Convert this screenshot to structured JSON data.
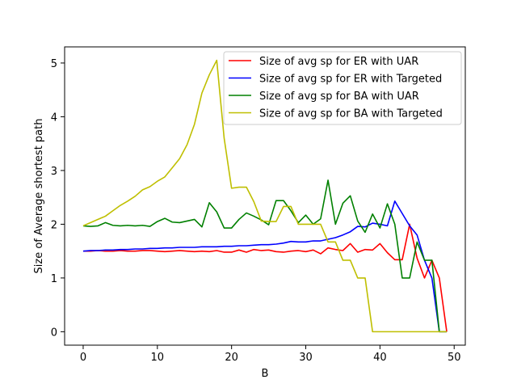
{
  "chart_data": {
    "type": "line",
    "title": "",
    "xlabel": "B",
    "ylabel": "Size of Average shortest path",
    "xlim": [
      -2.5,
      51.5
    ],
    "ylim": [
      -0.25,
      5.3
    ],
    "xticks": [
      0,
      10,
      20,
      30,
      40,
      50
    ],
    "yticks": [
      0,
      1,
      2,
      3,
      4,
      5
    ],
    "grid": false,
    "legend_position": "upper right",
    "x": [
      0,
      1,
      2,
      3,
      4,
      5,
      6,
      7,
      8,
      9,
      10,
      11,
      12,
      13,
      14,
      15,
      16,
      17,
      18,
      19,
      20,
      21,
      22,
      23,
      24,
      25,
      26,
      27,
      28,
      29,
      30,
      31,
      32,
      33,
      34,
      35,
      36,
      37,
      38,
      39,
      40,
      41,
      42,
      43,
      44,
      45,
      46,
      47,
      48,
      49
    ],
    "series": [
      {
        "name": "Size of avg sp for ER with UAR",
        "color": "#ff0000",
        "values": [
          1.5,
          1.5,
          1.51,
          1.5,
          1.5,
          1.51,
          1.5,
          1.5,
          1.51,
          1.51,
          1.5,
          1.49,
          1.5,
          1.51,
          1.5,
          1.49,
          1.5,
          1.49,
          1.51,
          1.48,
          1.48,
          1.52,
          1.48,
          1.53,
          1.51,
          1.52,
          1.49,
          1.48,
          1.5,
          1.51,
          1.49,
          1.52,
          1.45,
          1.56,
          1.53,
          1.51,
          1.64,
          1.48,
          1.53,
          1.52,
          1.64,
          1.47,
          1.34,
          1.34,
          2.0,
          1.37,
          1.0,
          1.33,
          1.0,
          0.0
        ]
      },
      {
        "name": "Size of avg sp for ER with Targeted",
        "color": "#0000ff",
        "values": [
          1.5,
          1.51,
          1.51,
          1.52,
          1.52,
          1.53,
          1.53,
          1.54,
          1.54,
          1.55,
          1.55,
          1.56,
          1.56,
          1.57,
          1.57,
          1.57,
          1.58,
          1.58,
          1.58,
          1.59,
          1.59,
          1.6,
          1.6,
          1.61,
          1.62,
          1.62,
          1.63,
          1.65,
          1.68,
          1.67,
          1.67,
          1.69,
          1.69,
          1.72,
          1.75,
          1.8,
          1.86,
          1.96,
          1.95,
          2.02,
          2.0,
          1.97,
          2.43,
          2.2,
          1.97,
          1.8,
          1.33,
          1.0,
          0.0,
          0.0
        ]
      },
      {
        "name": "Size of avg sp for BA with UAR",
        "color": "#008000",
        "values": [
          1.97,
          1.96,
          1.97,
          2.03,
          1.98,
          1.97,
          1.98,
          1.97,
          1.98,
          1.96,
          2.05,
          2.11,
          2.04,
          2.03,
          2.06,
          2.09,
          1.95,
          2.4,
          2.23,
          1.93,
          1.93,
          2.09,
          2.21,
          2.15,
          2.08,
          1.99,
          2.44,
          2.44,
          2.25,
          2.03,
          2.17,
          2.0,
          2.1,
          2.82,
          2.0,
          2.39,
          2.53,
          2.06,
          1.85,
          2.19,
          1.93,
          2.38,
          2.0,
          1.0,
          1.0,
          1.67,
          1.33,
          1.33,
          0.0,
          0.0
        ]
      },
      {
        "name": "Size of avg sp for BA with Targeted",
        "color": "#bfbf00",
        "values": [
          1.97,
          2.03,
          2.09,
          2.15,
          2.25,
          2.35,
          2.43,
          2.52,
          2.64,
          2.7,
          2.8,
          2.88,
          3.05,
          3.22,
          3.48,
          3.86,
          4.44,
          4.78,
          5.05,
          3.6,
          2.67,
          2.69,
          2.69,
          2.42,
          2.06,
          2.05,
          2.05,
          2.33,
          2.33,
          2.0,
          2.0,
          2.0,
          2.0,
          1.67,
          1.67,
          1.33,
          1.33,
          1.0,
          1.0,
          0.0,
          0.0,
          0.0,
          0.0,
          0.0,
          0.0,
          0.0,
          0.0,
          0.0,
          0.0,
          0.0
        ]
      }
    ]
  }
}
